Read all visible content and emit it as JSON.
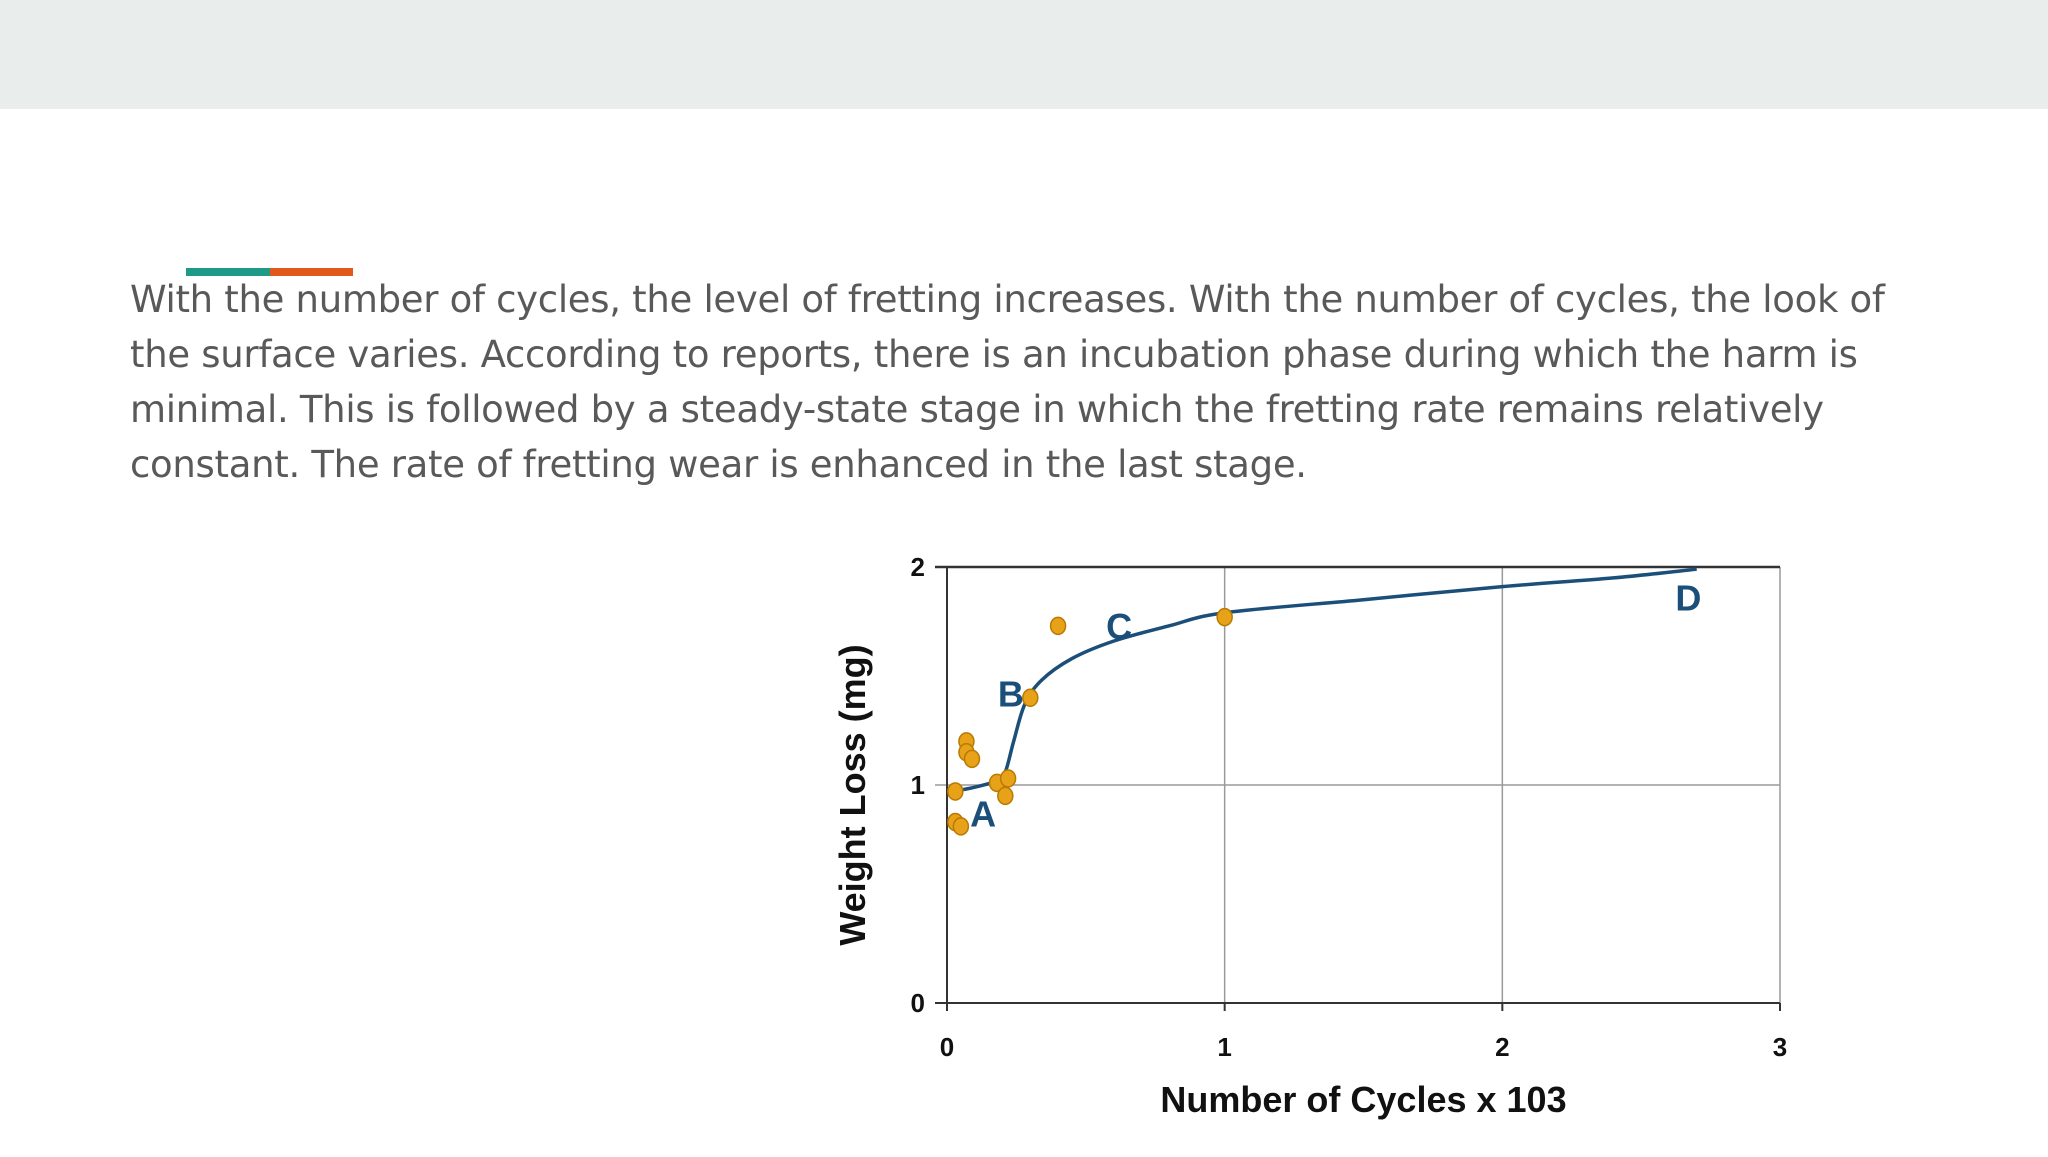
{
  "paragraph": "With the number of cycles, the level of fretting increases. With the number of cycles, the look of the surface varies. According to reports, there is an incubation phase during which the harm is minimal. This is followed by a steady-state stage in which the fretting rate remains relatively constant. The rate of fretting wear is enhanced in the last stage.",
  "colors": {
    "top_band": "#e9eeed",
    "accent_teal": "#1f9a86",
    "accent_orange": "#e2591c",
    "curve": "#1b4f7a",
    "points": "#e8a21a",
    "points_edge": "#b87a00",
    "grid": "#9a9a9a",
    "text": "#595959"
  },
  "chart_data": {
    "type": "scatter",
    "xlabel": "Number of Cycles x 103",
    "ylabel": "Weight Loss (mg)",
    "xlim": [
      0,
      3
    ],
    "ylim": [
      0,
      2
    ],
    "x_ticks": [
      "0",
      "1",
      "2",
      "3"
    ],
    "y_ticks": [
      "0",
      "1",
      "2"
    ],
    "grid": true,
    "series": [
      {
        "kind": "points",
        "x": [
          0.03,
          0.03,
          0.05,
          0.07,
          0.07,
          0.09,
          0.18,
          0.21,
          0.22,
          0.3,
          0.4,
          1.0
        ],
        "y": [
          0.97,
          0.83,
          0.81,
          1.2,
          1.15,
          1.12,
          1.01,
          0.95,
          1.03,
          1.4,
          1.73,
          1.77
        ]
      },
      {
        "kind": "fitted-curve",
        "x": [
          0.02,
          0.1,
          0.18,
          0.21,
          0.24,
          0.28,
          0.34,
          0.45,
          0.6,
          0.8,
          1.0,
          1.5,
          2.0,
          2.4,
          2.7
        ],
        "y": [
          0.97,
          0.99,
          1.02,
          1.06,
          1.2,
          1.37,
          1.48,
          1.58,
          1.66,
          1.73,
          1.79,
          1.85,
          1.91,
          1.95,
          1.99
        ]
      }
    ],
    "annotations": [
      {
        "text": "A",
        "x": 0.13,
        "y": 0.87
      },
      {
        "text": "B",
        "x": 0.23,
        "y": 1.42
      },
      {
        "text": "C",
        "x": 0.62,
        "y": 1.73
      },
      {
        "text": "D",
        "x": 2.67,
        "y": 1.86
      }
    ]
  }
}
